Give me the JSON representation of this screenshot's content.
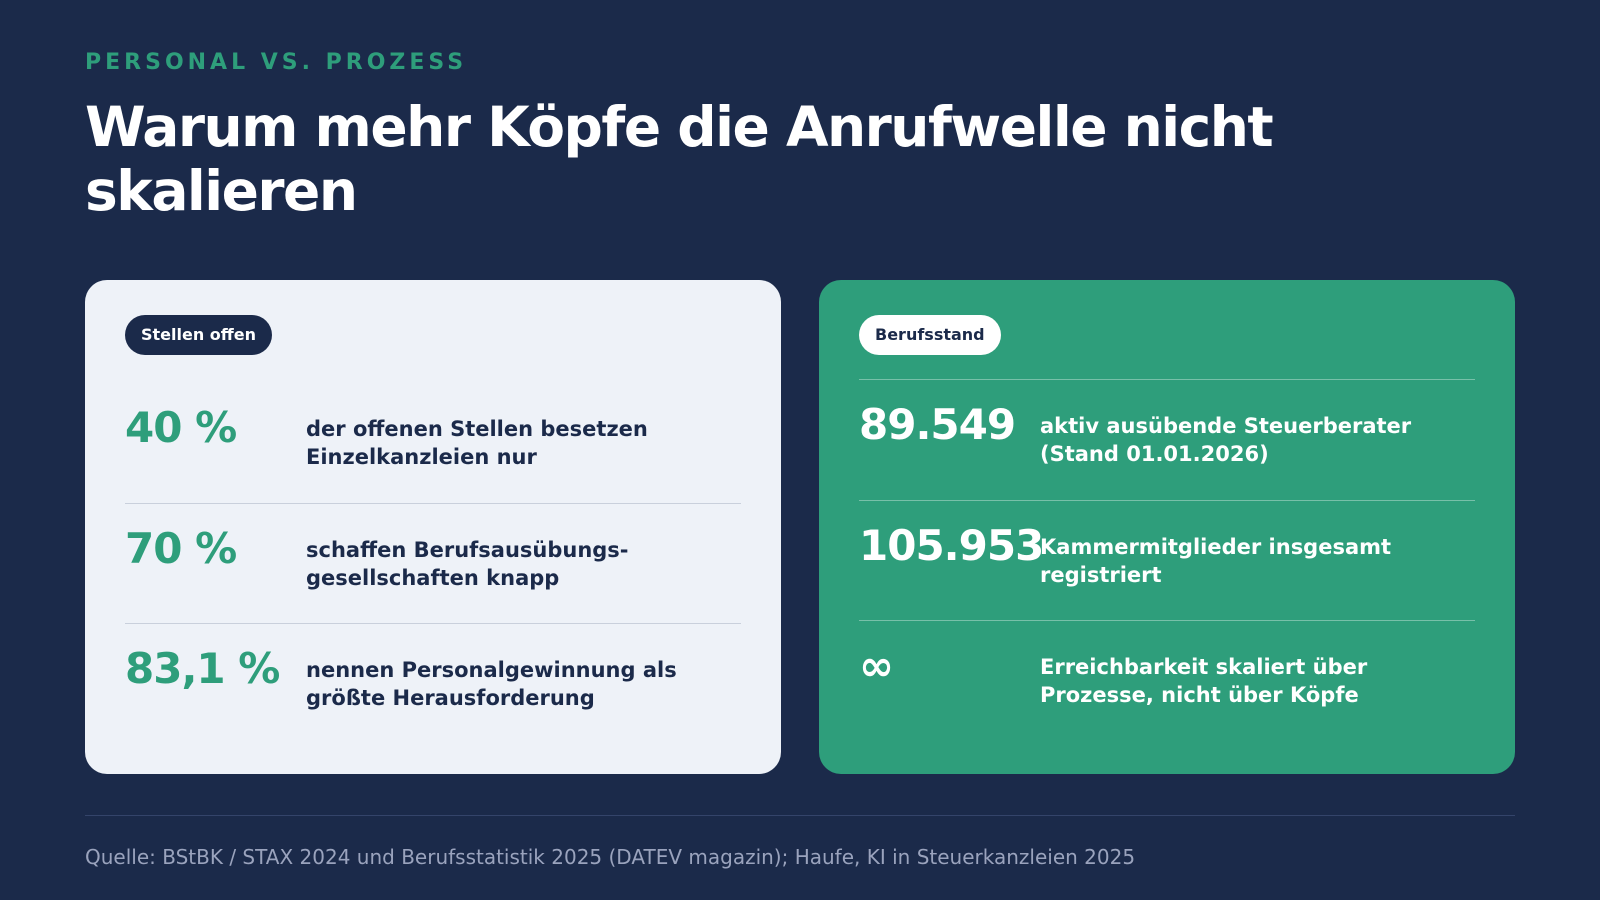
{
  "eyebrow": "PERSONAL VS. PROZESS",
  "title": "Warum mehr Köpfe die Anrufwelle nicht skalieren",
  "cards": [
    {
      "badge": "Stellen offen",
      "stats": [
        {
          "value": "40 %",
          "text": "der offenen Stellen besetzen Einzelkanzleien nur"
        },
        {
          "value": "70 %",
          "text": "schaffen Berufsausübungs-gesellschaften knapp"
        },
        {
          "value": "83,1 %",
          "text": "nennen Personalgewinnung als größte Herausforderung"
        }
      ]
    },
    {
      "badge": "Berufsstand",
      "stats": [
        {
          "value": "89.549",
          "text": "aktiv ausübende Steuerberater (Stand 01.01.2026)"
        },
        {
          "value": "105.953",
          "text": "Kammermitglieder insgesamt registriert"
        },
        {
          "value": "∞",
          "text": "Erreichbarkeit skaliert über Prozesse, nicht über Köpfe"
        }
      ]
    }
  ],
  "source": "Quelle: BStBK / STAX 2024 und Berufsstatistik 2025 (DATEV magazin); Haufe, KI in Steuerkanzleien 2025"
}
